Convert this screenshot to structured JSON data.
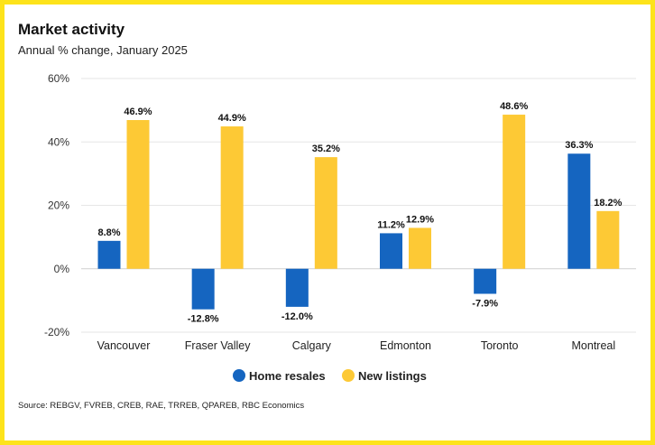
{
  "chart_data": {
    "type": "bar",
    "title": "Market activity",
    "subtitle": "Annual % change, January 2025",
    "categories": [
      "Vancouver",
      "Fraser Valley",
      "Calgary",
      "Edmonton",
      "Toronto",
      "Montreal"
    ],
    "series": [
      {
        "name": "Home resales",
        "color": "#1565c0",
        "values": [
          8.8,
          -12.8,
          -12.0,
          11.2,
          -7.9,
          36.3
        ],
        "labels": [
          "8.8%",
          "-12.8%",
          "-12.0%",
          "11.2%",
          "-7.9%",
          "36.3%"
        ]
      },
      {
        "name": "New listings",
        "color": "#fdc935",
        "values": [
          46.9,
          44.9,
          35.2,
          12.9,
          48.6,
          18.2
        ],
        "labels": [
          "46.9%",
          "44.9%",
          "35.2%",
          "12.9%",
          "48.6%",
          "18.2%"
        ]
      }
    ],
    "ylim": [
      -20,
      60
    ],
    "yticks": [
      60,
      40,
      20,
      0,
      -20
    ],
    "ytick_labels": [
      "60%",
      "40%",
      "20%",
      "0%",
      "-20%"
    ],
    "grid": true,
    "legend": "bottom",
    "source": "Source: REBGV, FVREB, CREB, RAE, TRREB, QPAREB, RBC Economics"
  },
  "colors": {
    "border": "#fde31b"
  }
}
